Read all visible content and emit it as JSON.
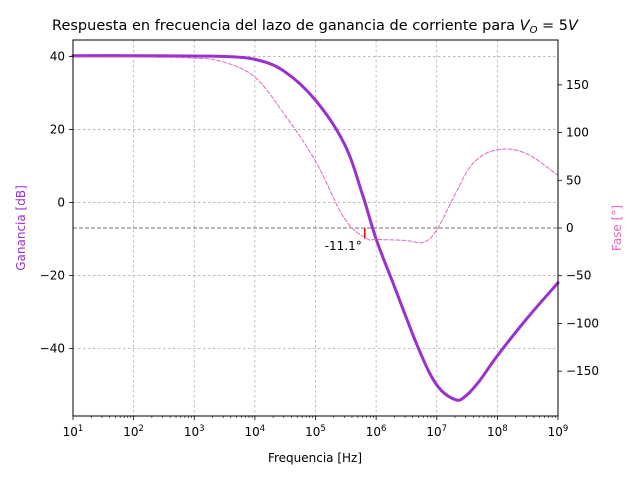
{
  "chart_data": {
    "type": "line",
    "title": "Respuesta en frecuencia del lazo de ganancia de corriente para ",
    "title_math": {
      "var": "V",
      "sub": "O",
      "rest": " = 5",
      "unit": "V"
    },
    "xlabel": "Frequencia [Hz]",
    "ylabel_left": "Ganancia [dB]",
    "ylabel_right": "Fase [°]",
    "xscale": "log",
    "xlim": [
      10,
      1000000000
    ],
    "ylim_left": [
      -58.5,
      44.5
    ],
    "ylim_right": [
      -197,
      197
    ],
    "x_ticks": [
      {
        "exp": 1,
        "label_base": "10",
        "label_exp": "1"
      },
      {
        "exp": 2,
        "label_base": "10",
        "label_exp": "2"
      },
      {
        "exp": 3,
        "label_base": "10",
        "label_exp": "3"
      },
      {
        "exp": 4,
        "label_base": "10",
        "label_exp": "4"
      },
      {
        "exp": 5,
        "label_base": "10",
        "label_exp": "5"
      },
      {
        "exp": 6,
        "label_base": "10",
        "label_exp": "6"
      },
      {
        "exp": 7,
        "label_base": "10",
        "label_exp": "7"
      },
      {
        "exp": 8,
        "label_base": "10",
        "label_exp": "8"
      },
      {
        "exp": 9,
        "label_base": "10",
        "label_exp": "9"
      }
    ],
    "y_ticks_left": [
      {
        "value": 40,
        "label": "40"
      },
      {
        "value": 20,
        "label": "20"
      },
      {
        "value": 0,
        "label": "0"
      },
      {
        "value": -20,
        "label": "−20"
      },
      {
        "value": -40,
        "label": "−40"
      }
    ],
    "y_ticks_right": [
      {
        "value": 150,
        "label": "150"
      },
      {
        "value": 100,
        "label": "100"
      },
      {
        "value": 50,
        "label": "50"
      },
      {
        "value": 0,
        "label": "0"
      },
      {
        "value": -50,
        "label": "−50"
      },
      {
        "value": -100,
        "label": "−100"
      },
      {
        "value": -150,
        "label": "−150"
      }
    ],
    "grid": true,
    "series": [
      {
        "axis": "left",
        "color": "#9932cc",
        "style": "solid",
        "points": [
          [
            10,
            40.2
          ],
          [
            100,
            40.2
          ],
          [
            1000,
            40.1
          ],
          [
            3000,
            40.0
          ],
          [
            10000,
            39.2
          ],
          [
            30000,
            36.0
          ],
          [
            100000,
            28.0
          ],
          [
            300000,
            16.0
          ],
          [
            600000,
            2.0
          ],
          [
            1000000,
            -10.0
          ],
          [
            2000000,
            -23.0
          ],
          [
            5000000,
            -40.0
          ],
          [
            10000000,
            -50.0
          ],
          [
            20000000,
            -54.0
          ],
          [
            30000000,
            -53.0
          ],
          [
            50000000,
            -49.0
          ],
          [
            100000000,
            -42.0
          ],
          [
            300000000,
            -32.0
          ],
          [
            1000000000,
            -22.0
          ]
        ]
      },
      {
        "axis": "right",
        "color": "#e066c2",
        "style": "dashed",
        "points": [
          [
            10,
            179.0
          ],
          [
            100,
            179.0
          ],
          [
            1000,
            178.0
          ],
          [
            3000,
            174.0
          ],
          [
            10000,
            158.0
          ],
          [
            30000,
            120.0
          ],
          [
            100000,
            70.0
          ],
          [
            300000,
            10.0
          ],
          [
            700000,
            -11.0
          ],
          [
            1000000,
            -12.0
          ],
          [
            3000000,
            -13.0
          ],
          [
            6000000,
            -15.0
          ],
          [
            10000000,
            -2.0
          ],
          [
            20000000,
            35.0
          ],
          [
            40000000,
            68.0
          ],
          [
            100000000,
            82.0
          ],
          [
            300000000,
            78.0
          ],
          [
            1000000000,
            55.0
          ]
        ]
      }
    ],
    "reference_line": {
      "axis": "right",
      "value": 0,
      "color": "#707070",
      "style": "dashed"
    },
    "annotation": {
      "label": "-11.1°",
      "x": 650000,
      "phase": -11.1,
      "color": "#ff0000"
    }
  }
}
